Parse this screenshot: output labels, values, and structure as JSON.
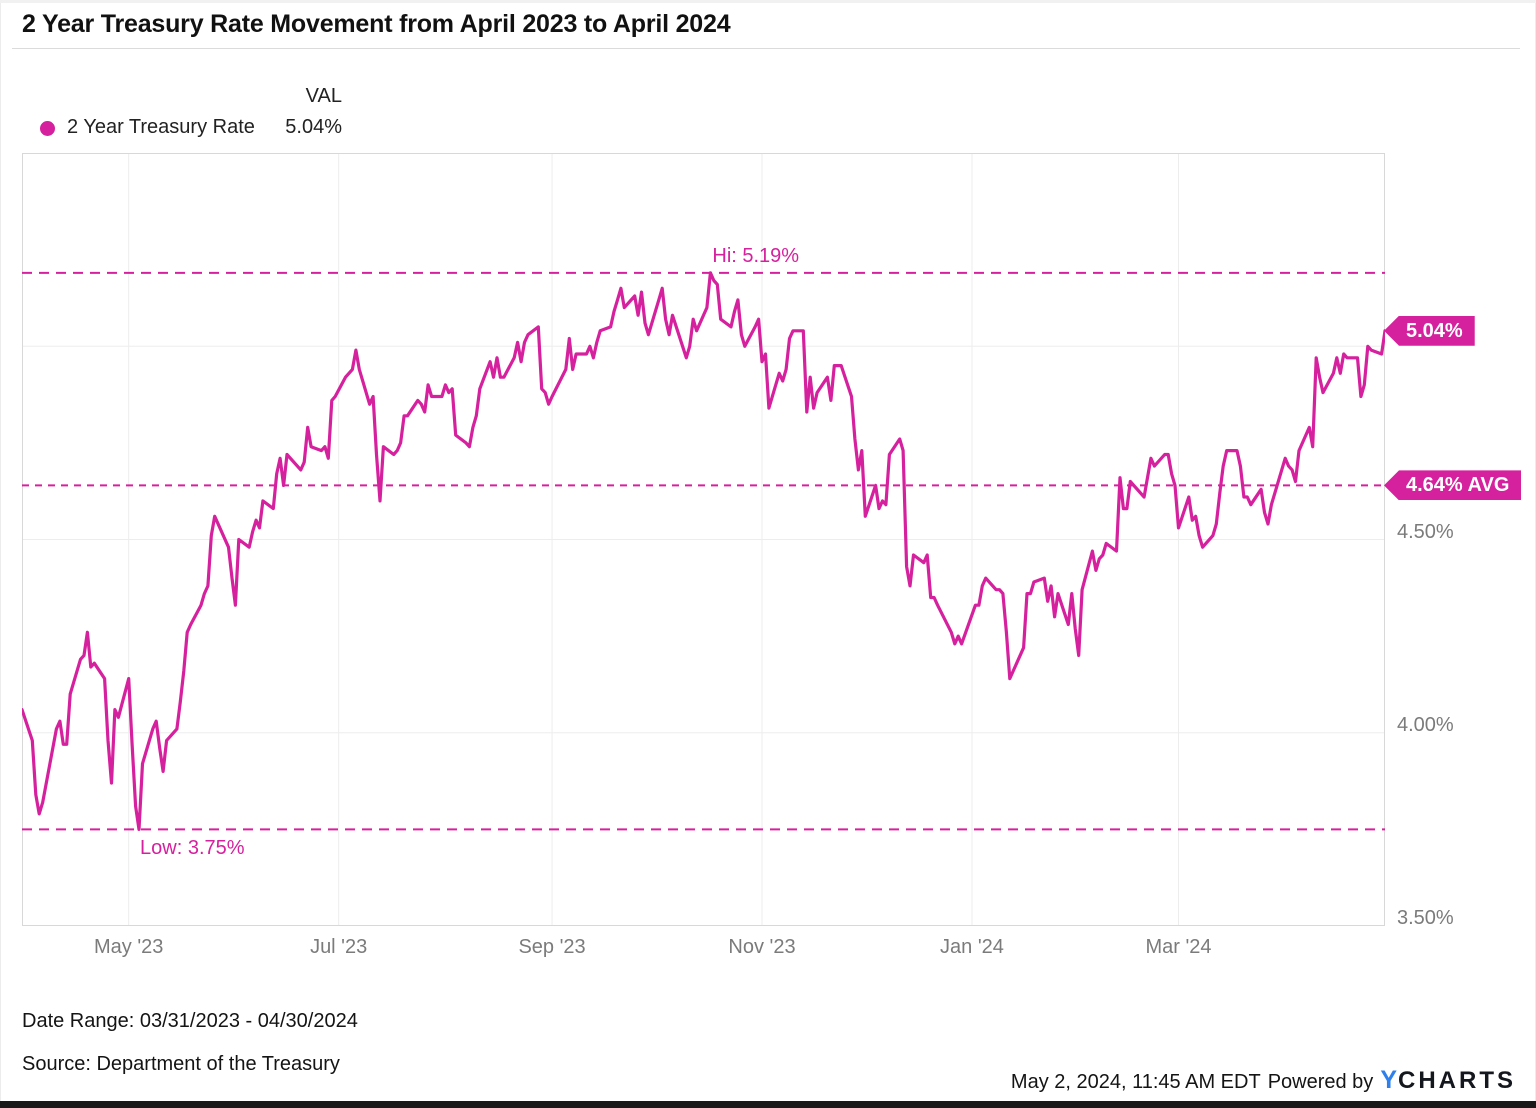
{
  "theme": {
    "accent_pink": "#d6219e",
    "logo_blue": "#2f80ed",
    "grid_color": "#ededed",
    "plot_border_color": "#d8d8d8",
    "axis_text_color": "#7b7b7b"
  },
  "header": {
    "title": "2 Year Treasury Rate Movement from April 2023 to April 2024"
  },
  "legend": {
    "series_label": "2 Year Treasury Rate",
    "val_header": "VAL",
    "val_value": "5.04%"
  },
  "footer": {
    "date_range": "Date Range: 03/31/2023 - 04/30/2024",
    "source": "Source: Department of the Treasury",
    "timestamp": "May 2, 2024, 11:45 AM EDT",
    "powered_by": "Powered by",
    "logo_y": "Y",
    "logo_charts": "CHARTS"
  },
  "chart_data": {
    "type": "line",
    "title": "2 Year Treasury Rate Movement from April 2023 to April 2024",
    "series_name": "2 Year Treasury Rate",
    "line_color": "#d6219e",
    "grid_on": true,
    "legend_position": "top-left",
    "x_epoch": "2023-03-31",
    "x_domain_days": [
      0,
      396
    ],
    "y_domain": [
      3.5,
      5.5
    ],
    "ylabel": "",
    "xlabel": "",
    "y_gridlines": [
      4.0,
      4.5,
      5.0
    ],
    "y_ticks": [
      {
        "label": "4.50%",
        "value": 4.5
      },
      {
        "label": "4.00%",
        "value": 4.0
      },
      {
        "label": "3.50%",
        "value": 3.5
      }
    ],
    "x_ticks": [
      {
        "label": "May '23",
        "day": 31
      },
      {
        "label": "Jul '23",
        "day": 92
      },
      {
        "label": "Sep '23",
        "day": 154
      },
      {
        "label": "Nov '23",
        "day": 215
      },
      {
        "label": "Jan '24",
        "day": 276
      },
      {
        "label": "Mar '24",
        "day": 336
      }
    ],
    "annotations": {
      "high": {
        "label": "Hi: 5.19%",
        "value": 5.19,
        "day": 200
      },
      "average": {
        "label": "4.64% AVG",
        "value": 4.64
      },
      "low": {
        "label": "Low: 3.75%",
        "value": 3.75,
        "day": 34
      },
      "last": {
        "label": "5.04%",
        "value": 5.04
      }
    },
    "points": [
      [
        0,
        4.06
      ],
      [
        3,
        3.98
      ],
      [
        4,
        3.84
      ],
      [
        5,
        3.79
      ],
      [
        6,
        3.82
      ],
      [
        10,
        4.01
      ],
      [
        11,
        4.03
      ],
      [
        12,
        3.97
      ],
      [
        13,
        3.97
      ],
      [
        14,
        4.1
      ],
      [
        17,
        4.19
      ],
      [
        18,
        4.2
      ],
      [
        19,
        4.26
      ],
      [
        20,
        4.17
      ],
      [
        21,
        4.18
      ],
      [
        24,
        4.14
      ],
      [
        25,
        3.98
      ],
      [
        26,
        3.87
      ],
      [
        27,
        4.06
      ],
      [
        28,
        4.04
      ],
      [
        31,
        4.14
      ],
      [
        32,
        3.97
      ],
      [
        33,
        3.81
      ],
      [
        34,
        3.75
      ],
      [
        35,
        3.92
      ],
      [
        38,
        4.01
      ],
      [
        39,
        4.03
      ],
      [
        40,
        3.96
      ],
      [
        41,
        3.9
      ],
      [
        42,
        3.98
      ],
      [
        45,
        4.01
      ],
      [
        46,
        4.08
      ],
      [
        47,
        4.16
      ],
      [
        48,
        4.26
      ],
      [
        49,
        4.28
      ],
      [
        52,
        4.33
      ],
      [
        53,
        4.36
      ],
      [
        54,
        4.38
      ],
      [
        55,
        4.51
      ],
      [
        56,
        4.56
      ],
      [
        60,
        4.48
      ],
      [
        61,
        4.4
      ],
      [
        62,
        4.33
      ],
      [
        63,
        4.5
      ],
      [
        66,
        4.48
      ],
      [
        67,
        4.52
      ],
      [
        68,
        4.55
      ],
      [
        69,
        4.53
      ],
      [
        70,
        4.6
      ],
      [
        73,
        4.58
      ],
      [
        74,
        4.67
      ],
      [
        75,
        4.71
      ],
      [
        76,
        4.64
      ],
      [
        77,
        4.72
      ],
      [
        81,
        4.68
      ],
      [
        82,
        4.7
      ],
      [
        83,
        4.79
      ],
      [
        84,
        4.74
      ],
      [
        87,
        4.73
      ],
      [
        88,
        4.74
      ],
      [
        89,
        4.71
      ],
      [
        90,
        4.86
      ],
      [
        91,
        4.87
      ],
      [
        94,
        4.92
      ],
      [
        96,
        4.94
      ],
      [
        97,
        4.99
      ],
      [
        98,
        4.94
      ],
      [
        101,
        4.85
      ],
      [
        102,
        4.87
      ],
      [
        103,
        4.72
      ],
      [
        104,
        4.6
      ],
      [
        105,
        4.74
      ],
      [
        108,
        4.72
      ],
      [
        109,
        4.73
      ],
      [
        110,
        4.75
      ],
      [
        111,
        4.82
      ],
      [
        112,
        4.82
      ],
      [
        115,
        4.86
      ],
      [
        116,
        4.85
      ],
      [
        117,
        4.83
      ],
      [
        118,
        4.9
      ],
      [
        119,
        4.87
      ],
      [
        122,
        4.87
      ],
      [
        123,
        4.9
      ],
      [
        124,
        4.88
      ],
      [
        125,
        4.89
      ],
      [
        126,
        4.77
      ],
      [
        129,
        4.75
      ],
      [
        130,
        4.74
      ],
      [
        131,
        4.79
      ],
      [
        132,
        4.82
      ],
      [
        133,
        4.89
      ],
      [
        136,
        4.96
      ],
      [
        137,
        4.92
      ],
      [
        138,
        4.97
      ],
      [
        139,
        4.92
      ],
      [
        140,
        4.92
      ],
      [
        143,
        4.97
      ],
      [
        144,
        5.01
      ],
      [
        145,
        4.96
      ],
      [
        146,
        5.01
      ],
      [
        147,
        5.03
      ],
      [
        150,
        5.05
      ],
      [
        151,
        4.89
      ],
      [
        152,
        4.88
      ],
      [
        153,
        4.85
      ],
      [
        154,
        4.87
      ],
      [
        158,
        4.94
      ],
      [
        159,
        5.02
      ],
      [
        160,
        4.94
      ],
      [
        161,
        4.98
      ],
      [
        164,
        4.98
      ],
      [
        165,
        5.0
      ],
      [
        166,
        4.97
      ],
      [
        167,
        5.01
      ],
      [
        168,
        5.04
      ],
      [
        171,
        5.05
      ],
      [
        172,
        5.09
      ],
      [
        173,
        5.12
      ],
      [
        174,
        5.15
      ],
      [
        175,
        5.1
      ],
      [
        178,
        5.13
      ],
      [
        179,
        5.08
      ],
      [
        180,
        5.14
      ],
      [
        181,
        5.06
      ],
      [
        182,
        5.03
      ],
      [
        185,
        5.12
      ],
      [
        186,
        5.15
      ],
      [
        187,
        5.07
      ],
      [
        188,
        5.03
      ],
      [
        189,
        5.08
      ],
      [
        193,
        4.97
      ],
      [
        194,
        5.0
      ],
      [
        195,
        5.07
      ],
      [
        196,
        5.04
      ],
      [
        199,
        5.1
      ],
      [
        200,
        5.19
      ],
      [
        201,
        5.17
      ],
      [
        202,
        5.16
      ],
      [
        203,
        5.07
      ],
      [
        206,
        5.05
      ],
      [
        207,
        5.09
      ],
      [
        208,
        5.12
      ],
      [
        209,
        5.03
      ],
      [
        210,
        5.0
      ],
      [
        213,
        5.05
      ],
      [
        214,
        5.07
      ],
      [
        215,
        4.96
      ],
      [
        216,
        4.98
      ],
      [
        217,
        4.84
      ],
      [
        220,
        4.93
      ],
      [
        221,
        4.91
      ],
      [
        222,
        4.94
      ],
      [
        223,
        5.02
      ],
      [
        224,
        5.04
      ],
      [
        227,
        5.04
      ],
      [
        228,
        4.83
      ],
      [
        229,
        4.92
      ],
      [
        230,
        4.84
      ],
      [
        231,
        4.88
      ],
      [
        234,
        4.92
      ],
      [
        235,
        4.86
      ],
      [
        236,
        4.95
      ],
      [
        238,
        4.95
      ],
      [
        241,
        4.87
      ],
      [
        242,
        4.76
      ],
      [
        243,
        4.68
      ],
      [
        244,
        4.73
      ],
      [
        245,
        4.56
      ],
      [
        248,
        4.64
      ],
      [
        249,
        4.58
      ],
      [
        250,
        4.6
      ],
      [
        251,
        4.59
      ],
      [
        252,
        4.72
      ],
      [
        255,
        4.76
      ],
      [
        256,
        4.73
      ],
      [
        257,
        4.43
      ],
      [
        258,
        4.38
      ],
      [
        259,
        4.46
      ],
      [
        262,
        4.44
      ],
      [
        263,
        4.46
      ],
      [
        264,
        4.35
      ],
      [
        265,
        4.35
      ],
      [
        266,
        4.33
      ],
      [
        270,
        4.26
      ],
      [
        271,
        4.23
      ],
      [
        272,
        4.25
      ],
      [
        273,
        4.23
      ],
      [
        277,
        4.33
      ],
      [
        278,
        4.33
      ],
      [
        279,
        4.38
      ],
      [
        280,
        4.4
      ],
      [
        283,
        4.37
      ],
      [
        284,
        4.37
      ],
      [
        285,
        4.36
      ],
      [
        286,
        4.26
      ],
      [
        287,
        4.14
      ],
      [
        291,
        4.22
      ],
      [
        292,
        4.36
      ],
      [
        293,
        4.36
      ],
      [
        294,
        4.39
      ],
      [
        297,
        4.4
      ],
      [
        298,
        4.34
      ],
      [
        299,
        4.38
      ],
      [
        300,
        4.3
      ],
      [
        301,
        4.36
      ],
      [
        304,
        4.28
      ],
      [
        305,
        4.36
      ],
      [
        306,
        4.27
      ],
      [
        307,
        4.2
      ],
      [
        308,
        4.37
      ],
      [
        311,
        4.47
      ],
      [
        312,
        4.42
      ],
      [
        313,
        4.45
      ],
      [
        314,
        4.46
      ],
      [
        315,
        4.49
      ],
      [
        318,
        4.47
      ],
      [
        319,
        4.66
      ],
      [
        320,
        4.58
      ],
      [
        321,
        4.58
      ],
      [
        322,
        4.65
      ],
      [
        326,
        4.61
      ],
      [
        327,
        4.66
      ],
      [
        328,
        4.71
      ],
      [
        329,
        4.69
      ],
      [
        332,
        4.72
      ],
      [
        333,
        4.72
      ],
      [
        334,
        4.67
      ],
      [
        335,
        4.64
      ],
      [
        336,
        4.53
      ],
      [
        339,
        4.61
      ],
      [
        340,
        4.55
      ],
      [
        341,
        4.56
      ],
      [
        342,
        4.51
      ],
      [
        343,
        4.48
      ],
      [
        346,
        4.51
      ],
      [
        347,
        4.54
      ],
      [
        348,
        4.62
      ],
      [
        349,
        4.69
      ],
      [
        350,
        4.73
      ],
      [
        353,
        4.73
      ],
      [
        354,
        4.69
      ],
      [
        355,
        4.61
      ],
      [
        356,
        4.61
      ],
      [
        357,
        4.59
      ],
      [
        360,
        4.63
      ],
      [
        361,
        4.57
      ],
      [
        362,
        4.54
      ],
      [
        363,
        4.59
      ],
      [
        367,
        4.71
      ],
      [
        368,
        4.69
      ],
      [
        369,
        4.68
      ],
      [
        370,
        4.65
      ],
      [
        371,
        4.73
      ],
      [
        374,
        4.79
      ],
      [
        375,
        4.74
      ],
      [
        376,
        4.97
      ],
      [
        377,
        4.92
      ],
      [
        378,
        4.88
      ],
      [
        381,
        4.93
      ],
      [
        382,
        4.97
      ],
      [
        383,
        4.93
      ],
      [
        384,
        4.98
      ],
      [
        385,
        4.97
      ],
      [
        388,
        4.97
      ],
      [
        389,
        4.87
      ],
      [
        390,
        4.9
      ],
      [
        391,
        5.0
      ],
      [
        392,
        4.99
      ],
      [
        395,
        4.98
      ],
      [
        396,
        5.04
      ]
    ]
  }
}
